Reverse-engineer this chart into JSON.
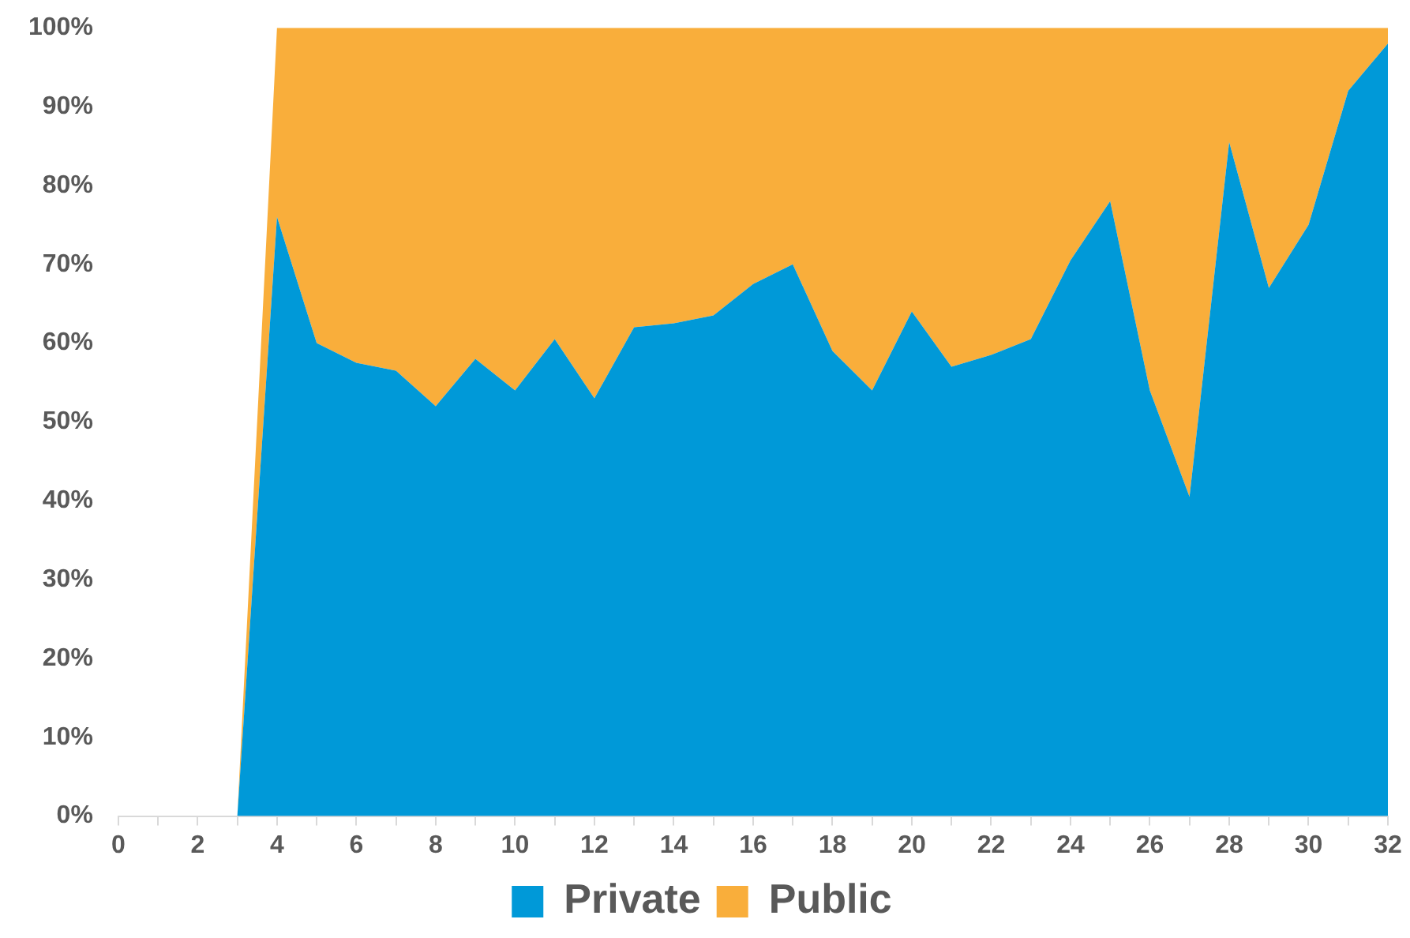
{
  "chart_data": {
    "type": "area",
    "stacked": true,
    "x": [
      0,
      1,
      2,
      3,
      4,
      5,
      6,
      7,
      8,
      9,
      10,
      11,
      12,
      13,
      14,
      15,
      16,
      17,
      18,
      19,
      20,
      21,
      22,
      23,
      24,
      25,
      26,
      27,
      28,
      29,
      30,
      31,
      32
    ],
    "series": [
      {
        "name": "Private",
        "color": "#0099d8",
        "values": [
          0,
          0,
          0,
          0,
          76,
          60,
          57.5,
          56.5,
          52,
          58,
          54,
          60.5,
          53,
          62,
          62.5,
          63.5,
          67.5,
          70,
          59,
          54,
          64,
          57,
          58.5,
          60.5,
          70.5,
          78,
          54,
          40.5,
          85.5,
          67,
          75,
          92,
          98
        ]
      },
      {
        "name": "Public",
        "color": "#f9ae3b",
        "values": [
          0,
          0,
          0,
          0,
          24,
          40,
          42.5,
          43.5,
          48,
          42,
          46,
          39.5,
          47,
          38,
          37.5,
          36.5,
          32.5,
          30,
          41,
          46,
          36,
          43,
          41.5,
          39.5,
          29.5,
          22,
          46,
          59.5,
          14.5,
          33,
          25,
          8,
          2
        ]
      }
    ],
    "xlim": [
      0,
      32
    ],
    "xticks": [
      0,
      {
        "value": 1,
        "label": null
      },
      2,
      {
        "value": 3,
        "label": null
      },
      4,
      {
        "value": 5,
        "label": null
      },
      6,
      {
        "value": 7,
        "label": null
      },
      8,
      {
        "value": 9,
        "label": null
      },
      10,
      {
        "value": 11,
        "label": null
      },
      12,
      {
        "value": 13,
        "label": null
      },
      14,
      {
        "value": 15,
        "label": null
      },
      16,
      {
        "value": 17,
        "label": null
      },
      18,
      {
        "value": 19,
        "label": null
      },
      20,
      {
        "value": 21,
        "label": null
      },
      22,
      {
        "value": 23,
        "label": null
      },
      24,
      {
        "value": 25,
        "label": null
      },
      26,
      {
        "value": 27,
        "label": null
      },
      28,
      {
        "value": 29,
        "label": null
      },
      30,
      {
        "value": 31,
        "label": null
      },
      32
    ],
    "ylim": [
      0,
      100
    ],
    "yticks": [
      {
        "value": 0,
        "label": "0%"
      },
      {
        "value": 10,
        "label": "10%"
      },
      {
        "value": 20,
        "label": "20%"
      },
      {
        "value": 30,
        "label": "30%"
      },
      {
        "value": 40,
        "label": "40%"
      },
      {
        "value": 50,
        "label": "50%"
      },
      {
        "value": 60,
        "label": "60%"
      },
      {
        "value": 70,
        "label": "70%"
      },
      {
        "value": 80,
        "label": "80%"
      },
      {
        "value": 90,
        "label": "90%"
      },
      {
        "value": 100,
        "label": "100%"
      }
    ],
    "grid": false,
    "legend": "bottom"
  }
}
